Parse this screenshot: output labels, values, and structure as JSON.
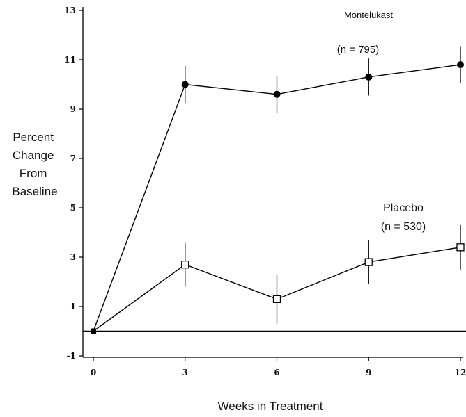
{
  "chart_data": {
    "type": "line",
    "title": "",
    "xlabel": "Weeks in Treatment",
    "ylabel": [
      "Percent",
      "Change",
      "From",
      "Baseline"
    ],
    "xlim": [
      0,
      12
    ],
    "ylim": [
      -1,
      13
    ],
    "xticks": [
      0,
      3,
      6,
      9,
      12
    ],
    "yticks": [
      -1,
      1,
      3,
      5,
      7,
      9,
      11,
      13
    ],
    "grid": false,
    "reference_line_y": 0,
    "series": [
      {
        "name": "Montelukast",
        "n_label": "(n = 795)",
        "marker": "filled-circle",
        "color": "#000000",
        "x": [
          0,
          3,
          6,
          9,
          12
        ],
        "y": [
          0,
          10.0,
          9.6,
          10.3,
          10.8
        ],
        "error": [
          0,
          0.75,
          0.75,
          0.75,
          0.75
        ]
      },
      {
        "name": "Placebo",
        "n_label": "(n = 530)",
        "marker": "open-square",
        "color": "#000000",
        "x": [
          0,
          3,
          6,
          9,
          12
        ],
        "y": [
          0,
          2.7,
          1.3,
          2.8,
          3.4
        ],
        "error": [
          0,
          0.9,
          1.0,
          0.9,
          0.9
        ]
      }
    ]
  }
}
